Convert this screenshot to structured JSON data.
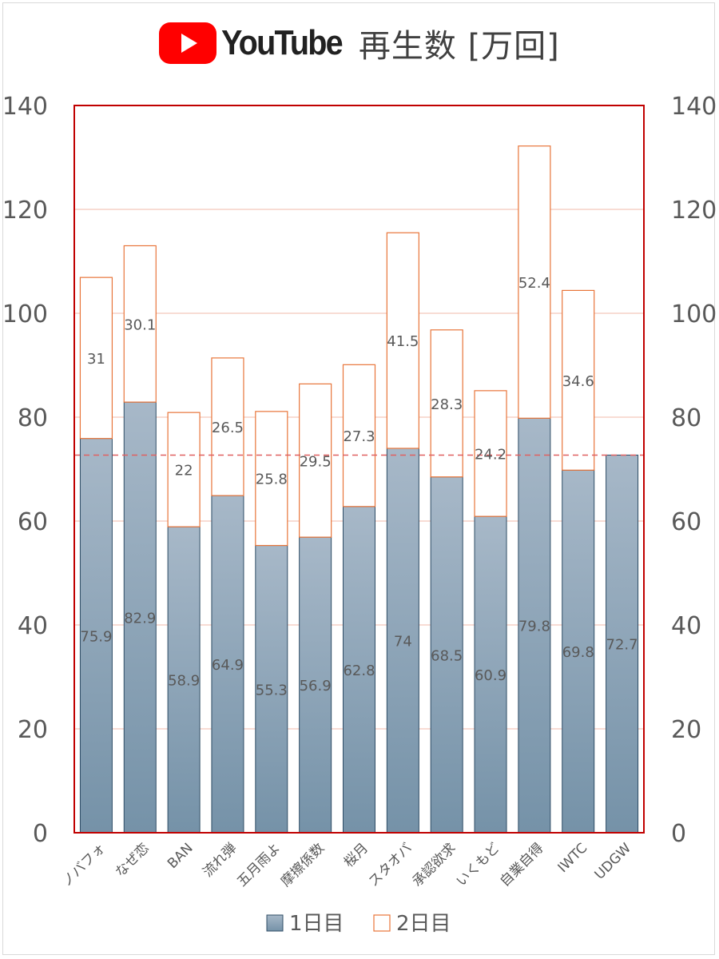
{
  "header": {
    "brand": "YouTube",
    "title": "再生数 [万回]"
  },
  "colors": {
    "plot_border": "#c00000",
    "day1_fill_top": "#a7b8c8",
    "day1_fill_bottom": "#7592a8",
    "day1_border": "#2f4d66",
    "day2_border": "#e8753a",
    "gridline": "#f2b8a8",
    "reference_line": "#e06060",
    "axis_text": "#595959",
    "label_text": "#595959"
  },
  "chart_data": {
    "type": "bar",
    "stacked": true,
    "categories": [
      "ノバフォ",
      "なぜ恋",
      "BAN",
      "流れ弾",
      "五月雨よ",
      "摩擦係数",
      "桜月",
      "スタオバ",
      "承認欲求",
      "いくもど",
      "自業自得",
      "IWTC",
      "UDGW"
    ],
    "series": [
      {
        "name": "1日目",
        "values": [
          75.9,
          82.9,
          58.9,
          64.9,
          55.3,
          56.9,
          62.8,
          74,
          68.5,
          60.9,
          79.8,
          69.8,
          72.7
        ]
      },
      {
        "name": "2日目",
        "values": [
          31,
          30.1,
          22,
          26.5,
          25.8,
          29.5,
          27.3,
          41.5,
          28.3,
          24.2,
          52.4,
          34.6,
          null
        ]
      }
    ],
    "ylim": [
      0,
      140
    ],
    "yticks": [
      0,
      20,
      40,
      60,
      80,
      100,
      120,
      140
    ],
    "secondary_y_axis": true,
    "reference_line": 72.7,
    "grid": true,
    "legend": "bottom"
  }
}
